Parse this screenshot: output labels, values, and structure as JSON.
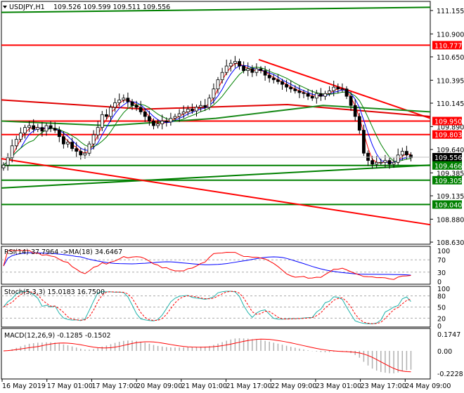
{
  "header": {
    "symbol": "USDJPY,H1",
    "ohlc": "109.526 109.599 109.511 109.556"
  },
  "chart_data": [
    {
      "type": "candlestick",
      "title": "USDJPY,H1",
      "ylim": [
        108.63,
        111.2
      ],
      "closes": [
        109.47,
        109.55,
        109.68,
        109.75,
        109.82,
        109.88,
        109.9,
        109.86,
        109.88,
        109.84,
        109.9,
        109.87,
        109.85,
        109.78,
        109.7,
        109.72,
        109.65,
        109.62,
        109.58,
        109.6,
        109.7,
        109.8,
        109.88,
        110.02,
        110.0,
        110.1,
        110.15,
        110.18,
        110.2,
        110.16,
        110.12,
        110.1,
        110.05,
        110.0,
        109.95,
        109.9,
        109.92,
        109.95,
        109.94,
        109.98,
        110.0,
        110.03,
        110.05,
        110.08,
        110.06,
        110.1,
        110.12,
        110.1,
        110.2,
        110.3,
        110.4,
        110.48,
        110.55,
        110.58,
        110.6,
        110.55,
        110.5,
        110.52,
        110.48,
        110.52,
        110.5,
        110.45,
        110.42,
        110.4,
        110.38,
        110.35,
        110.32,
        110.3,
        110.28,
        110.26,
        110.25,
        110.22,
        110.2,
        110.25,
        110.22,
        110.25,
        110.28,
        110.32,
        110.3,
        110.3,
        110.22,
        110.12,
        110.0,
        109.85,
        109.6,
        109.52,
        109.48,
        109.5,
        109.5,
        109.52,
        109.48,
        109.5,
        109.58,
        109.62,
        109.58,
        109.55
      ],
      "y_ticks": [
        "111.155",
        "110.900",
        "110.650",
        "110.395",
        "110.145",
        "109.890",
        "109.640",
        "109.385",
        "109.135",
        "108.880",
        "108.630"
      ],
      "price_tags": [
        {
          "value": "110.777",
          "color": "#ff0000"
        },
        {
          "value": "109.950",
          "color": "#ff0000"
        },
        {
          "value": "109.803",
          "color": "#ff0000"
        },
        {
          "value": "109.556",
          "color": "#000000"
        },
        {
          "value": "109.466",
          "color": "#008000"
        },
        {
          "value": "109.305",
          "color": "#008000"
        },
        {
          "value": "109.040",
          "color": "#008000"
        }
      ],
      "levels": [
        {
          "kind": "horizontal",
          "price": 110.777,
          "color": "#ff0000"
        },
        {
          "kind": "horizontal",
          "price": 109.95,
          "color": "#ff0000"
        },
        {
          "kind": "horizontal",
          "price": 109.803,
          "color": "#ff0000"
        },
        {
          "kind": "horizontal",
          "price": 109.466,
          "color": "#008000"
        },
        {
          "kind": "horizontal",
          "price": 109.305,
          "color": "#008000"
        },
        {
          "kind": "horizontal",
          "price": 109.04,
          "color": "#008000"
        }
      ],
      "trendlines": [
        {
          "from": [
            0,
            111.135
          ],
          "to": [
            100,
            111.19
          ],
          "color": "#008000"
        },
        {
          "from": [
            0,
            109.22
          ],
          "to": [
            100,
            109.47
          ],
          "color": "#008000"
        },
        {
          "from": [
            0,
            109.54
          ],
          "to": [
            100,
            108.82
          ],
          "color": "#ff0000"
        },
        {
          "from": [
            60,
            110.62
          ],
          "to": [
            100,
            109.98
          ],
          "color": "#ff0000"
        }
      ],
      "long_ma_red": [
        110.18,
        110.08,
        110.13,
        110.0
      ],
      "long_ma_green": [
        109.95,
        109.9,
        109.98,
        110.12,
        110.05
      ],
      "x_ticks": [
        "16 May 2019",
        "17 May 01:00",
        "17 May 17:00",
        "20 May 09:00",
        "21 May 01:00",
        "21 May 17:00",
        "22 May 09:00",
        "23 May 01:00",
        "23 May 17:00",
        "24 May 09:00"
      ]
    },
    {
      "type": "line",
      "title": "RSI(14) 37.7964  ->MA(18) 34.6467",
      "levels": [
        30,
        70
      ],
      "y_ticks": [
        "100",
        "70",
        "30",
        "0"
      ],
      "colors": {
        "rsi": "#ff0000",
        "ma": "#0000ff"
      }
    },
    {
      "type": "line",
      "title": "Stoch(5,3,3) 15.0183 16.7500",
      "levels": [
        20,
        50,
        80
      ],
      "y_ticks": [
        "100",
        "80",
        "50",
        "20",
        "0"
      ],
      "colors": {
        "main": "#20b2aa",
        "signal": "#ff0000"
      }
    },
    {
      "type": "bar",
      "title": "MACD(12,26,9) -0.1285 -0.1502",
      "y_ticks": [
        "0.1747",
        "0.00",
        "-0.2228"
      ],
      "ylim": [
        -0.2228,
        0.1747
      ],
      "colors": {
        "hist": "#b0b0b0",
        "signal": "#ff0000"
      }
    }
  ]
}
